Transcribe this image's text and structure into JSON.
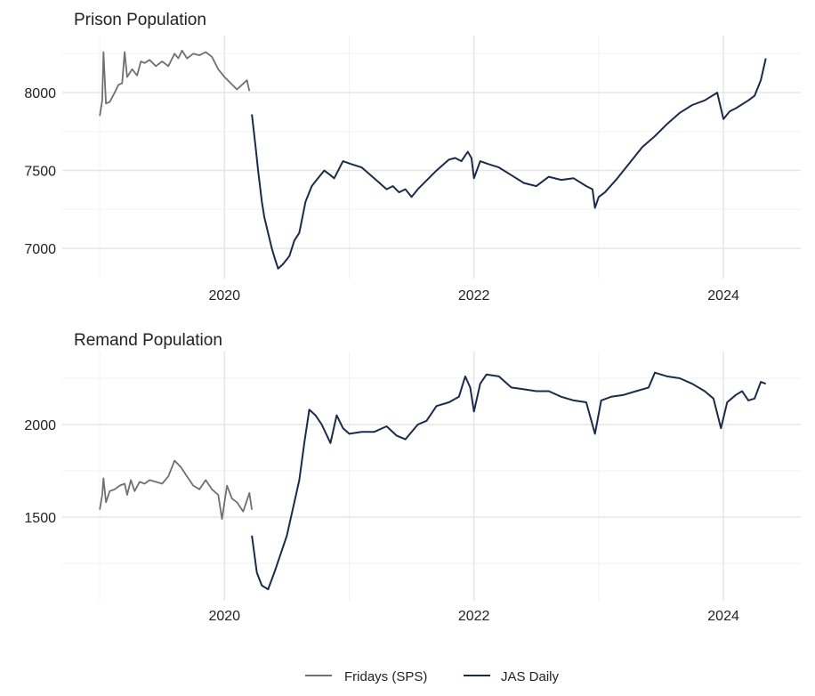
{
  "chart_data": [
    {
      "type": "line",
      "title": "Prison Population",
      "xlim": [
        2018.7,
        2024.62
      ],
      "ylim": [
        6806,
        8366
      ],
      "x_ticks": [
        2020,
        2022,
        2024
      ],
      "x_tick_labels": [
        "2020",
        "2022",
        "2024"
      ],
      "y_ticks": [
        7000,
        7500,
        8000
      ],
      "y_tick_labels": [
        "7000",
        "7500",
        "8000"
      ],
      "grid": true,
      "series": [
        {
          "name": "Fridays (SPS)",
          "color": "#707070",
          "x": [
            2019.0,
            2019.02,
            2019.03,
            2019.05,
            2019.08,
            2019.12,
            2019.15,
            2019.18,
            2019.2,
            2019.22,
            2019.26,
            2019.3,
            2019.33,
            2019.36,
            2019.4,
            2019.45,
            2019.5,
            2019.55,
            2019.6,
            2019.63,
            2019.66,
            2019.7,
            2019.75,
            2019.8,
            2019.85,
            2019.9,
            2019.95,
            2020.0,
            2020.05,
            2020.1,
            2020.14,
            2020.18,
            2020.2
          ],
          "y": [
            7850,
            7950,
            8260,
            7930,
            7940,
            8000,
            8050,
            8060,
            8260,
            8100,
            8150,
            8110,
            8200,
            8190,
            8210,
            8170,
            8200,
            8170,
            8250,
            8220,
            8270,
            8220,
            8250,
            8240,
            8260,
            8230,
            8150,
            8100,
            8060,
            8020,
            8050,
            8080,
            8010
          ]
        },
        {
          "name": "JAS Daily",
          "color": "#1c2b4a",
          "x": [
            2020.22,
            2020.25,
            2020.27,
            2020.3,
            2020.32,
            2020.35,
            2020.38,
            2020.41,
            2020.43,
            2020.47,
            2020.52,
            2020.56,
            2020.6,
            2020.65,
            2020.7,
            2020.75,
            2020.8,
            2020.85,
            2020.88,
            2020.95,
            2021.02,
            2021.1,
            2021.2,
            2021.3,
            2021.35,
            2021.4,
            2021.45,
            2021.5,
            2021.55,
            2021.6,
            2021.7,
            2021.8,
            2021.85,
            2021.9,
            2021.95,
            2021.98,
            2022.0,
            2022.05,
            2022.12,
            2022.2,
            2022.3,
            2022.4,
            2022.5,
            2022.6,
            2022.7,
            2022.8,
            2022.9,
            2022.95,
            2022.97,
            2023.0,
            2023.05,
            2023.15,
            2023.25,
            2023.35,
            2023.45,
            2023.55,
            2023.65,
            2023.75,
            2023.85,
            2023.95,
            2024.0,
            2024.05,
            2024.1,
            2024.2,
            2024.25,
            2024.3,
            2024.34
          ],
          "y": [
            7860,
            7650,
            7500,
            7300,
            7200,
            7100,
            7000,
            6920,
            6870,
            6900,
            6950,
            7050,
            7100,
            7300,
            7400,
            7450,
            7500,
            7470,
            7450,
            7560,
            7540,
            7520,
            7450,
            7380,
            7400,
            7360,
            7380,
            7330,
            7380,
            7420,
            7500,
            7570,
            7580,
            7560,
            7620,
            7580,
            7450,
            7560,
            7540,
            7520,
            7470,
            7420,
            7400,
            7460,
            7440,
            7450,
            7400,
            7380,
            7260,
            7330,
            7360,
            7450,
            7550,
            7650,
            7720,
            7800,
            7870,
            7920,
            7950,
            8000,
            7830,
            7880,
            7900,
            7950,
            7980,
            8080,
            8220
          ]
        }
      ]
    },
    {
      "type": "line",
      "title": "Remand Population",
      "xlim": [
        2018.7,
        2024.62
      ],
      "ylim": [
        1048,
        2394
      ],
      "x_ticks": [
        2020,
        2022,
        2024
      ],
      "x_tick_labels": [
        "2020",
        "2022",
        "2024"
      ],
      "y_ticks": [
        1500,
        2000
      ],
      "y_tick_labels": [
        "1500",
        "2000"
      ],
      "grid": true,
      "series": [
        {
          "name": "Fridays (SPS)",
          "color": "#707070",
          "x": [
            2019.0,
            2019.02,
            2019.03,
            2019.05,
            2019.08,
            2019.12,
            2019.16,
            2019.2,
            2019.22,
            2019.25,
            2019.28,
            2019.32,
            2019.36,
            2019.4,
            2019.45,
            2019.5,
            2019.55,
            2019.6,
            2019.65,
            2019.7,
            2019.75,
            2019.8,
            2019.85,
            2019.9,
            2019.95,
            2019.98,
            2020.02,
            2020.06,
            2020.1,
            2020.15,
            2020.2,
            2020.22
          ],
          "y": [
            1540,
            1620,
            1710,
            1580,
            1640,
            1650,
            1670,
            1680,
            1620,
            1700,
            1640,
            1690,
            1680,
            1700,
            1690,
            1680,
            1720,
            1805,
            1770,
            1720,
            1670,
            1650,
            1700,
            1650,
            1620,
            1490,
            1670,
            1600,
            1580,
            1530,
            1630,
            1540
          ]
        },
        {
          "name": "JAS Daily",
          "color": "#1c2b4a",
          "x": [
            2020.22,
            2020.26,
            2020.3,
            2020.35,
            2020.4,
            2020.45,
            2020.5,
            2020.55,
            2020.6,
            2020.64,
            2020.68,
            2020.73,
            2020.78,
            2020.85,
            2020.9,
            2020.95,
            2021.0,
            2021.1,
            2021.2,
            2021.3,
            2021.38,
            2021.45,
            2021.55,
            2021.62,
            2021.7,
            2021.8,
            2021.88,
            2021.93,
            2021.97,
            2022.0,
            2022.05,
            2022.1,
            2022.2,
            2022.3,
            2022.4,
            2022.5,
            2022.6,
            2022.7,
            2022.8,
            2022.9,
            2022.97,
            2023.02,
            2023.1,
            2023.2,
            2023.3,
            2023.4,
            2023.45,
            2023.55,
            2023.65,
            2023.75,
            2023.85,
            2023.92,
            2023.98,
            2024.03,
            2024.1,
            2024.15,
            2024.2,
            2024.25,
            2024.3,
            2024.34
          ],
          "y": [
            1400,
            1200,
            1130,
            1110,
            1200,
            1300,
            1400,
            1550,
            1700,
            1900,
            2080,
            2050,
            2000,
            1900,
            2050,
            1980,
            1950,
            1960,
            1960,
            1990,
            1940,
            1920,
            2000,
            2020,
            2100,
            2120,
            2150,
            2260,
            2200,
            2070,
            2220,
            2270,
            2260,
            2200,
            2190,
            2180,
            2180,
            2150,
            2130,
            2120,
            1950,
            2130,
            2150,
            2160,
            2180,
            2200,
            2280,
            2260,
            2250,
            2220,
            2180,
            2140,
            1980,
            2120,
            2160,
            2180,
            2130,
            2140,
            2230,
            2220
          ]
        }
      ]
    }
  ],
  "legend": {
    "position": "bottom",
    "items": [
      {
        "label": "Fridays (SPS)",
        "color": "#707070"
      },
      {
        "label": "JAS Daily",
        "color": "#1c2b4a"
      }
    ]
  }
}
